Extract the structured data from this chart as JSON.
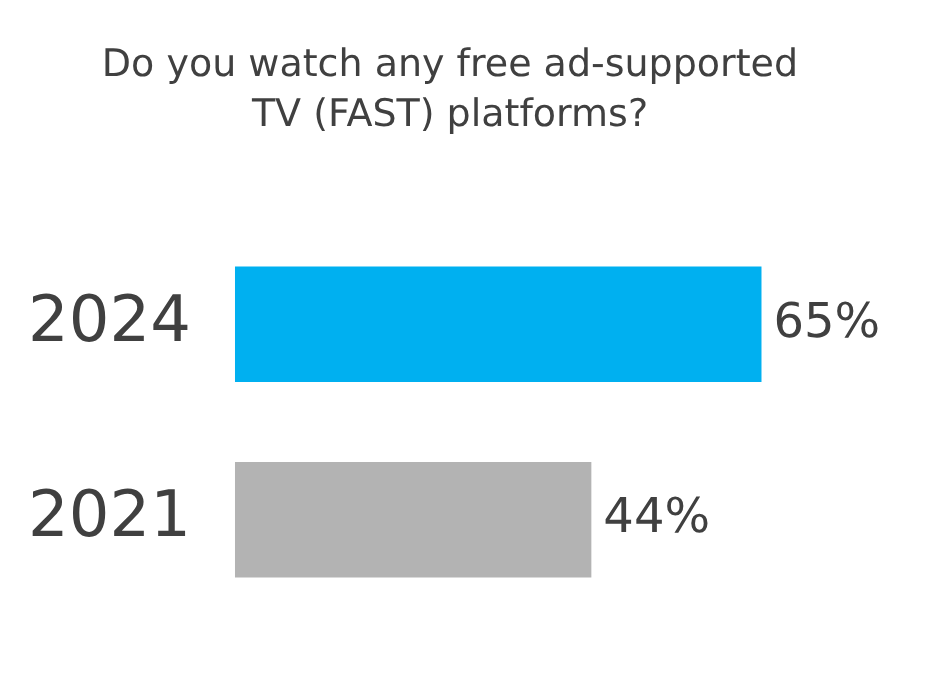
{
  "chart_data": {
    "type": "bar",
    "orientation": "horizontal",
    "title": "Do you watch any free ad-supported TV (FAST) platforms?",
    "categories": [
      "2024",
      "2021"
    ],
    "values": [
      65,
      44
    ],
    "colors": [
      "#00b0f0",
      "#b3b3b3"
    ],
    "data_labels": true,
    "value_labels": [
      "65%",
      "44%"
    ],
    "grid": false,
    "legend": false,
    "tick_labels": "y"
  }
}
